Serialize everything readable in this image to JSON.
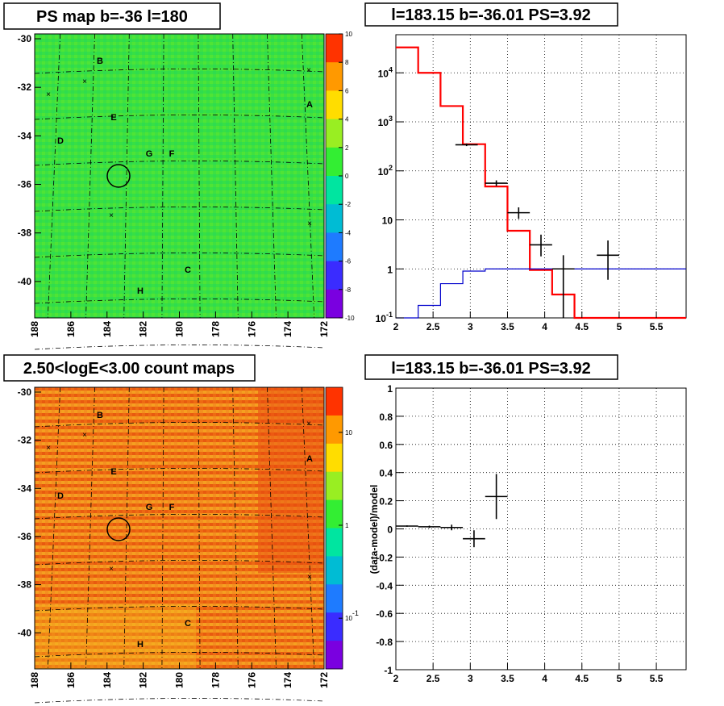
{
  "titles": {
    "ps_map": "PS map b=-36 l=180",
    "spectrum": "l=183.15 b=-36.01 PS=3.92",
    "count_map": "2.50<logE<3.00 count maps",
    "residual": "l=183.15 b=-36.01 PS=3.92"
  },
  "sources": [
    "A",
    "B",
    "C",
    "D",
    "E",
    "F",
    "G",
    "H"
  ],
  "chart_data": [
    {
      "type": "heatmap",
      "name": "ps-map",
      "title": "PS map b=-36 l=180",
      "xlabel": "",
      "ylabel": "",
      "x_ticks": [
        "188",
        "186",
        "184",
        "182",
        "180",
        "178",
        "176",
        "174",
        "172"
      ],
      "y_ticks": [
        "-30",
        "-32",
        "-34",
        "-36",
        "-38",
        "-40"
      ],
      "xlim": [
        188,
        172
      ],
      "ylim": [
        -41.5,
        -29.8
      ],
      "z_range": [
        -10,
        10
      ],
      "colorbar_ticks": [
        "10",
        "8",
        "6",
        "4",
        "2",
        "0",
        "-2",
        "-4",
        "-6",
        "-8",
        "-10"
      ],
      "colorscale": [
        "#7a00e0",
        "#3a2cff",
        "#1e7bff",
        "#00bcd4",
        "#00e5a0",
        "#33ee33",
        "#99ee22",
        "#ffdd00",
        "#ff9900",
        "#ff3300"
      ],
      "dominant_color": "#3ee23e",
      "marked_source": {
        "l": 183.15,
        "b": -36.01
      }
    },
    {
      "type": "line",
      "name": "spectrum",
      "title": "l=183.15 b=-36.01 PS=3.92",
      "xlabel": "",
      "ylabel": "",
      "x_ticks": [
        "2",
        "2.5",
        "3",
        "3.5",
        "4",
        "4.5",
        "5",
        "5.5"
      ],
      "y_ticks": [
        "10^-1",
        "1",
        "10",
        "10^2",
        "10^3",
        "10^4"
      ],
      "xlim": [
        2,
        5.9
      ],
      "ylim": [
        0.1,
        60000
      ],
      "yscale": "log",
      "grid": true,
      "bin_edges": [
        2,
        2.3,
        2.6,
        2.9,
        3.2,
        3.5,
        3.8,
        4.1,
        4.4,
        4.7,
        5.0,
        5.3,
        5.6,
        5.9
      ],
      "series": [
        {
          "color": "#ff0000",
          "values": [
            33000,
            10000,
            2100,
            350,
            48,
            6,
            0.95,
            0.3,
            0.1,
            0.1,
            0.1,
            0.1,
            0.1
          ]
        },
        {
          "color": "#0000cc",
          "values": [
            0.1,
            0.18,
            0.5,
            0.9,
            1.0,
            1.0,
            1.0,
            1.0,
            1.0,
            1.0,
            1.0,
            1.0,
            1.0
          ]
        }
      ],
      "data_points": [
        {
          "x": 2.95,
          "xerr": 0.15,
          "y": 340,
          "ylo": 320,
          "yhi": 360
        },
        {
          "x": 3.35,
          "xerr": 0.15,
          "y": 56,
          "ylo": 49,
          "yhi": 64
        },
        {
          "x": 3.65,
          "xerr": 0.15,
          "y": 14,
          "ylo": 10.5,
          "yhi": 18
        },
        {
          "x": 3.95,
          "xerr": 0.15,
          "y": 3.1,
          "ylo": 1.8,
          "yhi": 5
        },
        {
          "x": 4.25,
          "xerr": 0.15,
          "y": 1.0,
          "ylo": 0.1,
          "yhi": 1.9
        },
        {
          "x": 4.85,
          "xerr": 0.15,
          "y": 1.9,
          "ylo": 0.6,
          "yhi": 3.8
        }
      ]
    },
    {
      "type": "heatmap",
      "name": "count-map",
      "title": "2.50<logE<3.00 count maps",
      "xlabel": "",
      "ylabel": "",
      "x_ticks": [
        "188",
        "186",
        "184",
        "182",
        "180",
        "178",
        "176",
        "174",
        "172"
      ],
      "y_ticks": [
        "-30",
        "-32",
        "-34",
        "-36",
        "-38",
        "-40"
      ],
      "xlim": [
        188,
        172
      ],
      "ylim": [
        -41.5,
        -29.8
      ],
      "zscale": "log",
      "colorbar_ticks": [
        "10",
        "1",
        "10^-1"
      ],
      "colorscale": [
        "#7a00e0",
        "#3a2cff",
        "#1e7bff",
        "#00bcd4",
        "#00e5a0",
        "#33ee33",
        "#99ee22",
        "#ffdd00",
        "#ff9900",
        "#ff3300"
      ],
      "dominant_color": "#f07a1a",
      "marked_source": {
        "l": 183.15,
        "b": -36.01
      }
    },
    {
      "type": "scatter",
      "name": "residual",
      "title": "l=183.15 b=-36.01 PS=3.92",
      "xlabel": "",
      "ylabel": "(data-model)/model",
      "x_ticks": [
        "2",
        "2.5",
        "3",
        "3.5",
        "4",
        "4.5",
        "5",
        "5.5"
      ],
      "y_ticks": [
        "1",
        "0.8",
        "0.6",
        "0.4",
        "0.2",
        "0",
        "-0.2",
        "-0.4",
        "-0.6",
        "-0.8",
        "-1"
      ],
      "xlim": [
        2,
        5.9
      ],
      "ylim": [
        -1,
        1
      ],
      "grid": true,
      "data_points": [
        {
          "x": 2.15,
          "xerr": 0.15,
          "y": 0.02,
          "yerr": 0.005
        },
        {
          "x": 2.45,
          "xerr": 0.15,
          "y": 0.015,
          "yerr": 0.008
        },
        {
          "x": 2.75,
          "xerr": 0.15,
          "y": 0.01,
          "yerr": 0.02
        },
        {
          "x": 3.05,
          "xerr": 0.15,
          "y": -0.07,
          "yerr": 0.06
        },
        {
          "x": 3.35,
          "xerr": 0.15,
          "y": 0.23,
          "yerr": 0.16
        }
      ]
    }
  ]
}
